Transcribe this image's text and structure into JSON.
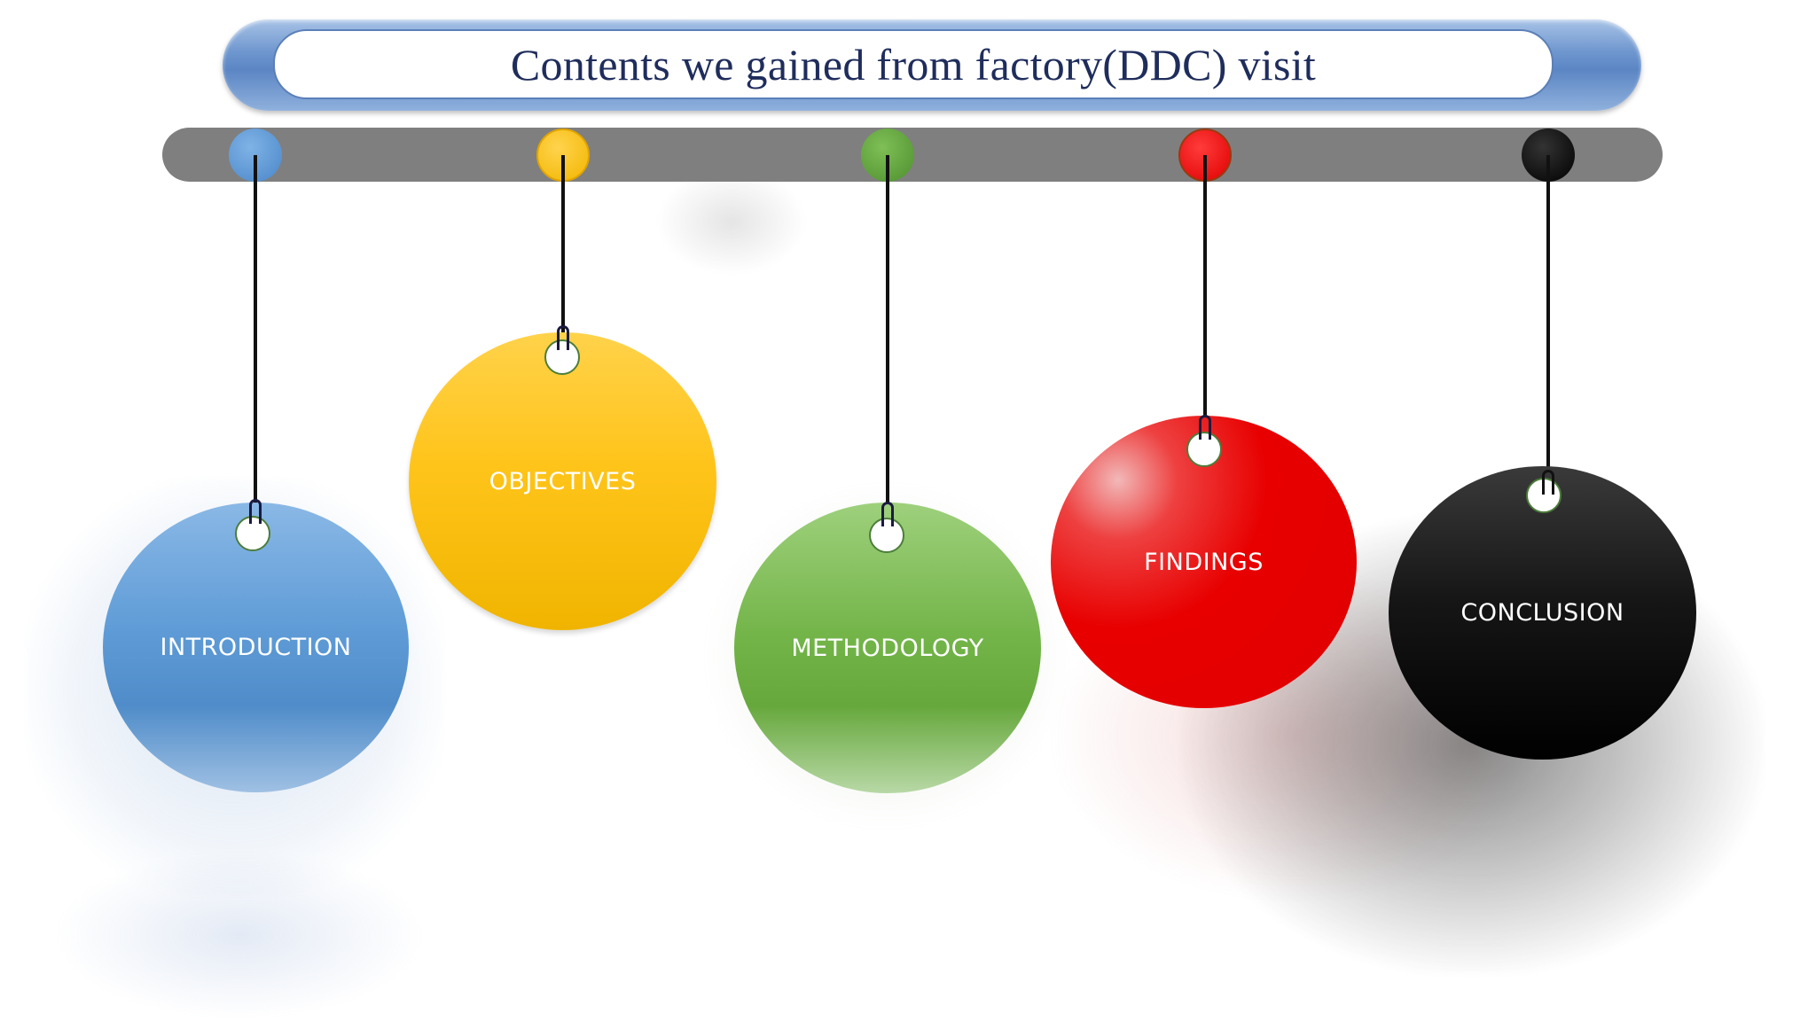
{
  "title": "Contents we gained from factory(DDC) visit",
  "items": [
    {
      "label": "INTRODUCTION",
      "color": "#5b9bd5"
    },
    {
      "label": "OBJECTIVES",
      "color": "#ffc000"
    },
    {
      "label": "METHODOLOGY",
      "color": "#70ad47"
    },
    {
      "label": "FINDINGS",
      "color": "#ff0000"
    },
    {
      "label": "CONCLUSION",
      "color": "#000000"
    }
  ]
}
